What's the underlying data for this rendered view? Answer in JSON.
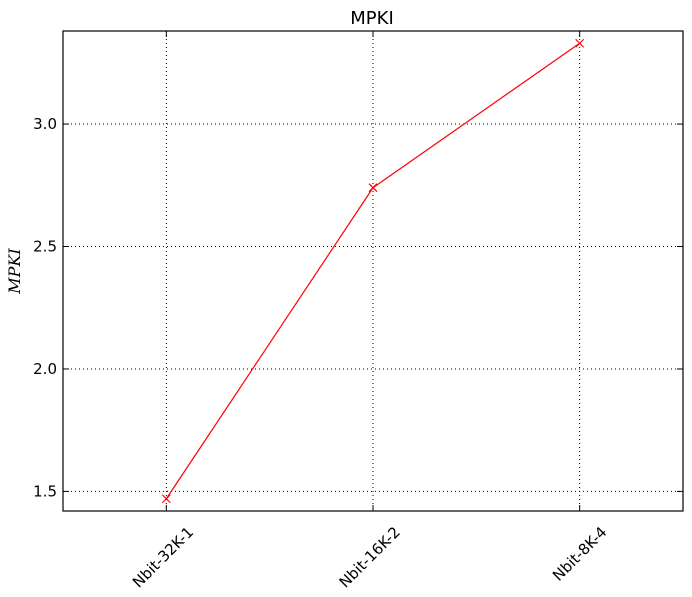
{
  "chart_data": {
    "type": "line",
    "title": "MPKI",
    "xlabel": "",
    "ylabel": "MPKI",
    "categories": [
      "Nbit-32K-1",
      "Nbit-16K-2",
      "Nbit-8K-4"
    ],
    "series": [
      {
        "values": [
          1.47,
          2.74,
          3.33
        ],
        "color": "#ff0000",
        "marker": "x"
      }
    ],
    "ylim": [
      1.42,
      3.38
    ],
    "yticks": [
      "1.5",
      "2.0",
      "2.5",
      "3.0"
    ],
    "grid": true
  }
}
